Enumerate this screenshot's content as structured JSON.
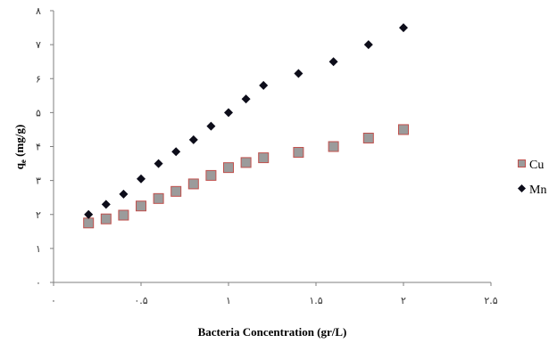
{
  "chart_data": {
    "type": "scatter",
    "title": "",
    "xlabel": "Bacteria Concentration (gr/L)",
    "ylabel": "qe (mg/g)",
    "ylabel_main": "q",
    "ylabel_sub": "e",
    "ylabel_rest": " (mg/g)",
    "xlim": [
      0,
      2.5
    ],
    "ylim": [
      0,
      8
    ],
    "x_ticks": [
      0,
      0.5,
      1,
      1.5,
      2,
      2.5
    ],
    "y_ticks": [
      0,
      1,
      2,
      3,
      4,
      5,
      6,
      7,
      8
    ],
    "x_tick_labels": [
      "۰",
      "۰.۵",
      "۱",
      "۱.۵",
      "۲",
      "۲.۵"
    ],
    "y_tick_labels": [
      "۰",
      "۱",
      "۲",
      "۳",
      "۴",
      "۵",
      "۶",
      "۷",
      "۸"
    ],
    "grid": false,
    "legend_position": "right",
    "series": [
      {
        "name": "Cu",
        "marker": "square",
        "color": "#9b9b9b",
        "border": "#c0504d",
        "x": [
          0.2,
          0.3,
          0.4,
          0.5,
          0.6,
          0.7,
          0.8,
          0.9,
          1.0,
          1.1,
          1.2,
          1.4,
          1.6,
          1.8,
          2.0
        ],
        "y": [
          1.75,
          1.87,
          1.98,
          2.25,
          2.47,
          2.68,
          2.9,
          3.15,
          3.38,
          3.53,
          3.67,
          3.83,
          4.0,
          4.25,
          4.5
        ]
      },
      {
        "name": "Mn",
        "marker": "diamond",
        "color": "#0d0d1a",
        "x": [
          0.2,
          0.3,
          0.4,
          0.5,
          0.6,
          0.7,
          0.8,
          0.9,
          1.0,
          1.1,
          1.2,
          1.4,
          1.6,
          1.8,
          2.0
        ],
        "y": [
          2.0,
          2.3,
          2.6,
          3.05,
          3.5,
          3.85,
          4.2,
          4.6,
          5.0,
          5.4,
          5.8,
          6.15,
          6.5,
          7.0,
          7.5
        ]
      }
    ]
  }
}
